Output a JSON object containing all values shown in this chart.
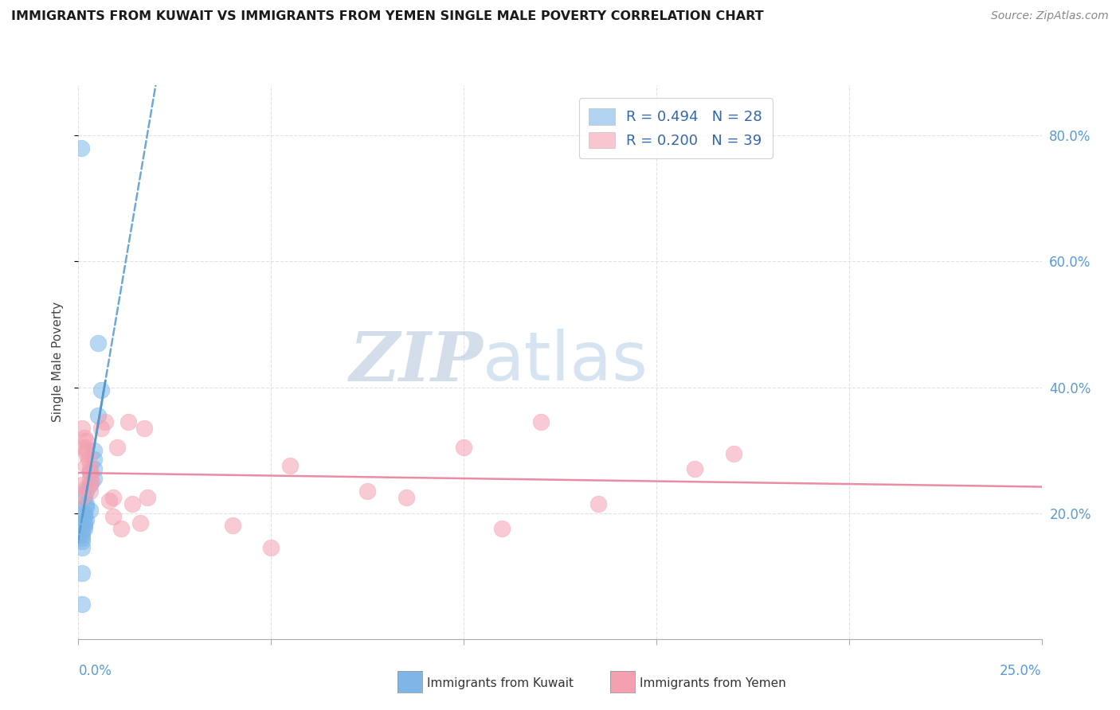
{
  "title": "IMMIGRANTS FROM KUWAIT VS IMMIGRANTS FROM YEMEN SINGLE MALE POVERTY CORRELATION CHART",
  "source": "Source: ZipAtlas.com",
  "ylabel": "Single Male Poverty",
  "right_yticks": [
    "80.0%",
    "60.0%",
    "40.0%",
    "20.0%"
  ],
  "right_ytick_vals": [
    0.8,
    0.6,
    0.4,
    0.2
  ],
  "kuwait_color": "#7EB6E8",
  "yemen_color": "#F4A0B0",
  "kuwait_line_color": "#5599CC",
  "yemen_line_color": "#E8809A",
  "watermark_zip": "ZIP",
  "watermark_atlas": "atlas",
  "kuwait_points": [
    [
      0.0008,
      0.78
    ],
    [
      0.005,
      0.47
    ],
    [
      0.006,
      0.395
    ],
    [
      0.005,
      0.355
    ],
    [
      0.004,
      0.3
    ],
    [
      0.004,
      0.285
    ],
    [
      0.004,
      0.27
    ],
    [
      0.003,
      0.265
    ],
    [
      0.004,
      0.255
    ],
    [
      0.003,
      0.245
    ],
    [
      0.002,
      0.235
    ],
    [
      0.0015,
      0.225
    ],
    [
      0.002,
      0.215
    ],
    [
      0.002,
      0.21
    ],
    [
      0.003,
      0.205
    ],
    [
      0.0015,
      0.2
    ],
    [
      0.0015,
      0.195
    ],
    [
      0.002,
      0.19
    ],
    [
      0.0015,
      0.185
    ],
    [
      0.0015,
      0.18
    ],
    [
      0.0015,
      0.175
    ],
    [
      0.001,
      0.17
    ],
    [
      0.001,
      0.165
    ],
    [
      0.001,
      0.16
    ],
    [
      0.001,
      0.155
    ],
    [
      0.001,
      0.145
    ],
    [
      0.001,
      0.105
    ],
    [
      0.001,
      0.055
    ]
  ],
  "yemen_points": [
    [
      0.001,
      0.335
    ],
    [
      0.0015,
      0.32
    ],
    [
      0.002,
      0.315
    ],
    [
      0.0015,
      0.305
    ],
    [
      0.002,
      0.3
    ],
    [
      0.002,
      0.295
    ],
    [
      0.0025,
      0.285
    ],
    [
      0.002,
      0.275
    ],
    [
      0.003,
      0.27
    ],
    [
      0.003,
      0.265
    ],
    [
      0.003,
      0.255
    ],
    [
      0.0035,
      0.25
    ],
    [
      0.001,
      0.245
    ],
    [
      0.002,
      0.24
    ],
    [
      0.003,
      0.235
    ],
    [
      0.001,
      0.225
    ],
    [
      0.006,
      0.335
    ],
    [
      0.007,
      0.345
    ],
    [
      0.008,
      0.22
    ],
    [
      0.009,
      0.195
    ],
    [
      0.009,
      0.225
    ],
    [
      0.01,
      0.305
    ],
    [
      0.011,
      0.175
    ],
    [
      0.013,
      0.345
    ],
    [
      0.014,
      0.215
    ],
    [
      0.016,
      0.185
    ],
    [
      0.017,
      0.335
    ],
    [
      0.018,
      0.225
    ],
    [
      0.04,
      0.18
    ],
    [
      0.05,
      0.145
    ],
    [
      0.055,
      0.275
    ],
    [
      0.075,
      0.235
    ],
    [
      0.085,
      0.225
    ],
    [
      0.1,
      0.305
    ],
    [
      0.11,
      0.175
    ],
    [
      0.12,
      0.345
    ],
    [
      0.135,
      0.215
    ],
    [
      0.16,
      0.27
    ],
    [
      0.17,
      0.295
    ]
  ],
  "xlim": [
    0,
    0.25
  ],
  "ylim": [
    0.0,
    0.88
  ],
  "background_color": "#ffffff",
  "grid_color": "#e0e0ea",
  "grid_style": "--"
}
